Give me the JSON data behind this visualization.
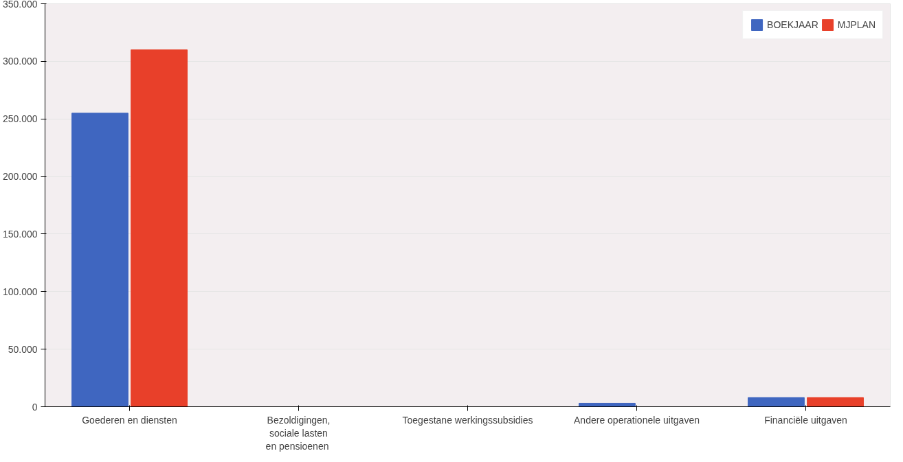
{
  "chart_data": {
    "type": "bar",
    "categories": [
      "Goederen en diensten",
      "Bezoldigingen, sociale lasten en pensioenen",
      "Toegestane werkingssubsidies",
      "Andere operationele uitgaven",
      "Financiële uitgaven"
    ],
    "series": [
      {
        "name": "BOEKJAAR",
        "color": "#3f66c0",
        "values": [
          255000,
          0,
          0,
          3000,
          8000
        ]
      },
      {
        "name": "MJPLAN",
        "color": "#e8402a",
        "values": [
          310000,
          0,
          0,
          0,
          8000
        ]
      }
    ],
    "ylim": [
      0,
      350000
    ],
    "yticks": [
      {
        "value": 0,
        "label": "0"
      },
      {
        "value": 50000,
        "label": "50.000"
      },
      {
        "value": 100000,
        "label": "100.000"
      },
      {
        "value": 150000,
        "label": "150.000"
      },
      {
        "value": 200000,
        "label": "200.000"
      },
      {
        "value": 250000,
        "label": "250.000"
      },
      {
        "value": 300000,
        "label": "300.000"
      },
      {
        "value": 350000,
        "label": "350.000"
      }
    ],
    "grid": "y",
    "legend": "top right"
  }
}
